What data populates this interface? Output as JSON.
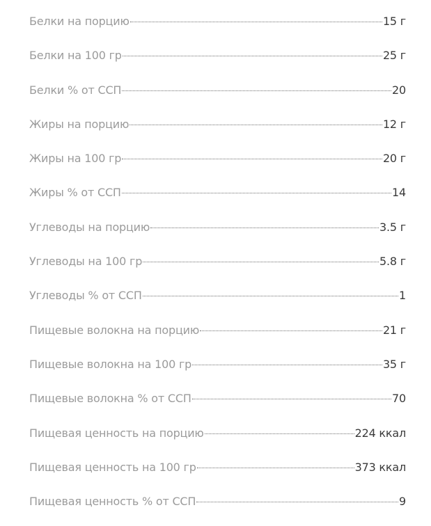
{
  "nutrition": {
    "rows": [
      {
        "label": "Белки на порцию",
        "value": "15 г"
      },
      {
        "label": "Белки на 100 гр",
        "value": "25 г"
      },
      {
        "label": "Белки % от ССП",
        "value": "20"
      },
      {
        "label": "Жиры на порцию",
        "value": "12 г"
      },
      {
        "label": "Жиры на 100 гр",
        "value": "20 г"
      },
      {
        "label": "Жиры % от ССП",
        "value": "14"
      },
      {
        "label": "Углеводы на порцию",
        "value": "3.5 г"
      },
      {
        "label": "Углеводы на 100 гр",
        "value": "5.8 г"
      },
      {
        "label": "Углеводы % от ССП",
        "value": "1"
      },
      {
        "label": "Пищевые волокна на порцию",
        "value": "21 г"
      },
      {
        "label": "Пищевые волокна на 100 гр",
        "value": "35 г"
      },
      {
        "label": "Пищевые волокна % от ССП",
        "value": "70"
      },
      {
        "label": "Пищевая ценность на порцию",
        "value": "224 ккал"
      },
      {
        "label": "Пищевая ценность на 100 гр",
        "value": "373 ккал"
      },
      {
        "label": "Пищевая ценность % от ССП",
        "value": "9"
      }
    ]
  },
  "colors": {
    "label": "#9b9b9b",
    "value": "#3a3a3a",
    "leader": "#6e6e6e",
    "background": "#ffffff"
  }
}
